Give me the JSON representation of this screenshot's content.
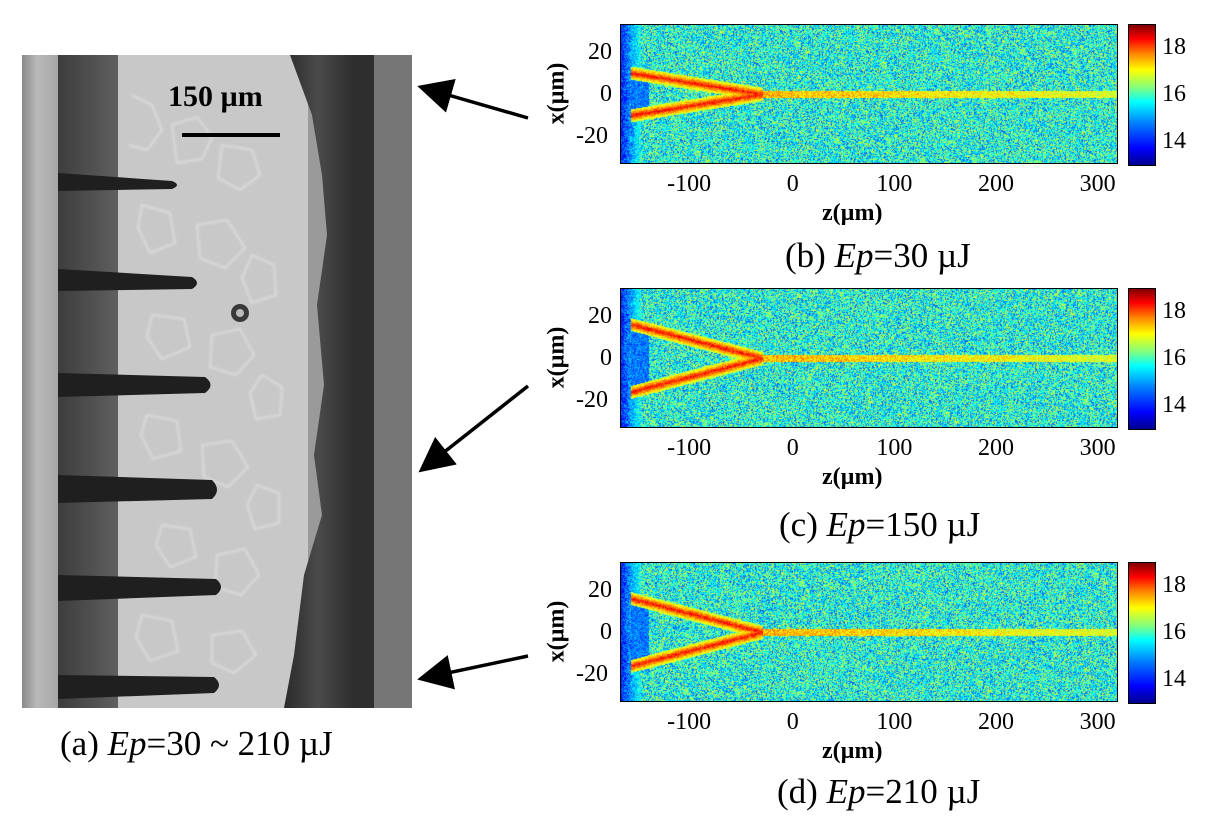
{
  "panel_a": {
    "scale_label": "150 µm",
    "caption_prefix": "(a) ",
    "caption_var": "Ep",
    "caption_suffix": "=30 ~ 210 µJ"
  },
  "maps": [
    {
      "caption_prefix": "(b) ",
      "caption_var": "Ep",
      "caption_suffix": "=30 µJ"
    },
    {
      "caption_prefix": "(c) ",
      "caption_var": "Ep",
      "caption_suffix": "=150 µJ"
    },
    {
      "caption_prefix": "(d) ",
      "caption_var": "Ep",
      "caption_suffix": "=210 µJ"
    }
  ],
  "axes": {
    "xlabel": "z(µm)",
    "ylabel": "x(µm)",
    "x_ticks": [
      "-100",
      "0",
      "100",
      "200",
      "300"
    ],
    "y_ticks": [
      "20",
      "0",
      "-20"
    ],
    "colorbar_ticks": [
      "18",
      "16",
      "14"
    ]
  },
  "chart_data": [
    {
      "type": "heatmap",
      "xlabel": "z(µm)",
      "ylabel": "x(µm)",
      "xlim": [
        -170,
        320
      ],
      "ylim": [
        -33,
        33
      ],
      "clim": [
        13,
        19
      ],
      "colorbar_ticks": [
        14,
        16,
        18
      ],
      "colormap": "jet",
      "apex_z": -30,
      "arm_start_x": 10
    },
    {
      "type": "heatmap",
      "xlabel": "z(µm)",
      "ylabel": "x(µm)",
      "xlim": [
        -170,
        320
      ],
      "ylim": [
        -33,
        33
      ],
      "clim": [
        13,
        19
      ],
      "colorbar_ticks": [
        14,
        16,
        18
      ],
      "colormap": "jet",
      "apex_z": -30,
      "arm_start_x": 16
    },
    {
      "type": "heatmap",
      "xlabel": "z(µm)",
      "ylabel": "x(µm)",
      "xlim": [
        -170,
        320
      ],
      "ylim": [
        -33,
        33
      ],
      "clim": [
        13,
        19
      ],
      "colorbar_ticks": [
        14,
        16,
        18
      ],
      "colormap": "jet",
      "apex_z": -30,
      "arm_start_x": 16
    }
  ]
}
